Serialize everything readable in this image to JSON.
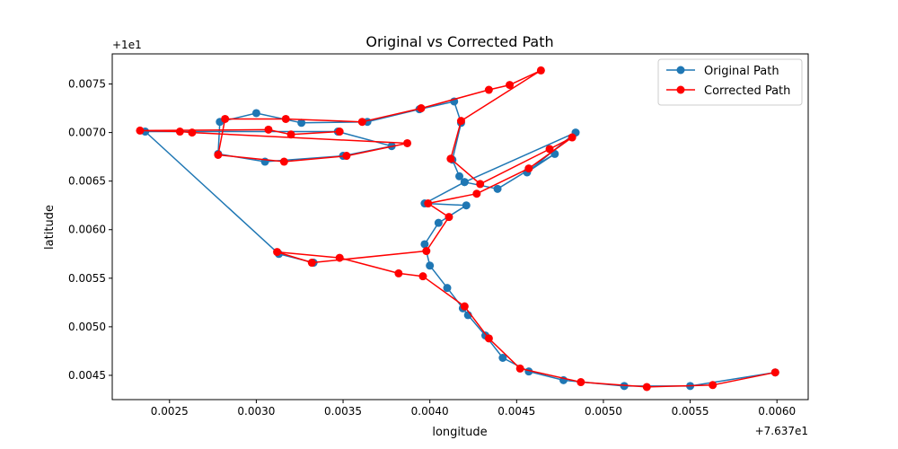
{
  "chart_data": {
    "type": "line",
    "title": "Original vs Corrected Path",
    "xlabel": "longitude",
    "ylabel": "latitude",
    "x_offset_label": "+7.637e1",
    "y_offset_label": "+1e1",
    "xlim": [
      0.00217,
      0.00618
    ],
    "ylim": [
      0.00425,
      0.00781
    ],
    "x_ticks": [
      0.0025,
      0.003,
      0.0035,
      0.004,
      0.0045,
      0.005,
      0.0055,
      0.006
    ],
    "x_tick_labels": [
      "0.0025",
      "0.0030",
      "0.0035",
      "0.0040",
      "0.0045",
      "0.0050",
      "0.0055",
      "0.0060"
    ],
    "y_ticks": [
      0.0045,
      0.005,
      0.0055,
      0.006,
      0.0065,
      0.007,
      0.0075
    ],
    "y_tick_labels": [
      "0.0045",
      "0.0050",
      "0.0055",
      "0.0060",
      "0.0065",
      "0.0070",
      "0.0075"
    ],
    "grid": false,
    "legend_position": "top-right",
    "series": [
      {
        "name": "Original Path",
        "color": "#1f77b4",
        "marker": "circle",
        "x": [
          0.00599,
          0.0055,
          0.00512,
          0.00477,
          0.00457,
          0.00442,
          0.00432,
          0.00422,
          0.00419,
          0.0041,
          0.004,
          0.00397,
          0.00405,
          0.00421,
          0.00397,
          0.0042,
          0.00439,
          0.00472,
          0.00456,
          0.00484,
          0.0042,
          0.00417,
          0.00413,
          0.00418,
          0.00414,
          0.00394,
          0.00364,
          0.00326,
          0.003,
          0.00279,
          0.00278,
          0.00305,
          0.0035,
          0.00378,
          0.00347,
          0.00236,
          0.00313,
          0.00333
        ],
        "y": [
          0.00453,
          0.00439,
          0.00439,
          0.00445,
          0.00454,
          0.00468,
          0.00491,
          0.00512,
          0.00519,
          0.0054,
          0.00563,
          0.00585,
          0.00607,
          0.00625,
          0.00627,
          0.00649,
          0.00642,
          0.00678,
          0.00659,
          0.007,
          0.00649,
          0.00655,
          0.00672,
          0.0071,
          0.00732,
          0.00724,
          0.00711,
          0.0071,
          0.0072,
          0.00711,
          0.00678,
          0.0067,
          0.00676,
          0.00686,
          0.00701,
          0.00701,
          0.00575,
          0.00566
        ]
      },
      {
        "name": "Corrected Path",
        "color": "#ff0000",
        "marker": "circle",
        "x": [
          0.00599,
          0.00563,
          0.00525,
          0.00487,
          0.00452,
          0.00434,
          0.0042,
          0.00396,
          0.00382,
          0.00348,
          0.00312,
          0.00332,
          0.00398,
          0.00411,
          0.00399,
          0.00427,
          0.00457,
          0.00482,
          0.00469,
          0.00429,
          0.00412,
          0.00418,
          0.00464,
          0.00446,
          0.00434,
          0.00395,
          0.00361,
          0.00317,
          0.00282,
          0.00278,
          0.00316,
          0.00352,
          0.00387,
          0.00263,
          0.00256,
          0.00233,
          0.00307,
          0.0032,
          0.00348
        ],
        "y": [
          0.00453,
          0.0044,
          0.00438,
          0.00443,
          0.00457,
          0.00488,
          0.00521,
          0.00552,
          0.00555,
          0.00571,
          0.00577,
          0.00566,
          0.00578,
          0.00613,
          0.00627,
          0.00637,
          0.00663,
          0.00695,
          0.00683,
          0.00647,
          0.00673,
          0.00712,
          0.00764,
          0.00749,
          0.00744,
          0.00725,
          0.00711,
          0.00714,
          0.00714,
          0.00677,
          0.0067,
          0.00676,
          0.00689,
          0.007,
          0.00701,
          0.00702,
          0.00703,
          0.00698,
          0.00701
        ]
      }
    ]
  }
}
